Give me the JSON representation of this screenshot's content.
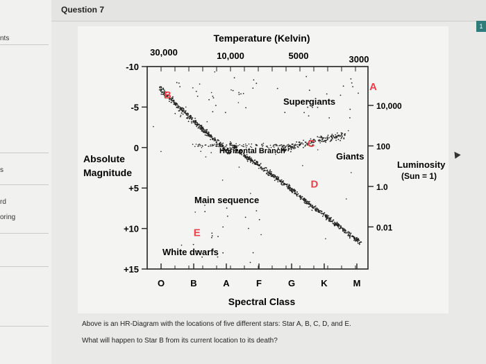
{
  "sidebar": {
    "items": [
      {
        "label": "nts"
      },
      {
        "label": "s"
      },
      {
        "label": "rd"
      },
      {
        "label": "oring"
      }
    ]
  },
  "question": {
    "title": "Question 7",
    "flag_label": "1"
  },
  "chart_data": {
    "type": "scatter",
    "title": "",
    "top_axis_label": "Temperature (Kelvin)",
    "top_ticks": [
      "30,000",
      "10,000",
      "5000",
      "3000"
    ],
    "left_axis_label": [
      "Absolute",
      "Magnitude"
    ],
    "left_ticks": [
      "-10",
      "-5",
      "0",
      "+5",
      "+10",
      "+15"
    ],
    "left_values": [
      -10,
      -5,
      0,
      5,
      10,
      15
    ],
    "right_axis_label": [
      "Luminosity",
      "(Sun = 1)"
    ],
    "right_ticks": [
      "10,000",
      "100",
      "1.0",
      "0.01"
    ],
    "right_values": [
      10000,
      100,
      1,
      0.01
    ],
    "bottom_axis_label": "Spectral Class",
    "bottom_ticks": [
      "O",
      "B",
      "A",
      "F",
      "G",
      "K",
      "M"
    ],
    "region_labels": {
      "supergiants": "Supergiants",
      "giants": "Giants",
      "horizontal_branch": "Horizontal Branch",
      "main_sequence": "Main sequence",
      "white_dwarfs": "White dwarfs"
    },
    "stars": [
      {
        "label": "A",
        "class": 6.5,
        "magnitude": -7.5
      },
      {
        "label": "B",
        "class": 0.2,
        "magnitude": -6.5
      },
      {
        "label": "C",
        "class": 4.6,
        "magnitude": -0.5
      },
      {
        "label": "D",
        "class": 4.7,
        "magnitude": 4.5
      },
      {
        "label": "E",
        "class": 1.1,
        "magnitude": 10.5
      }
    ],
    "star_color": "#e8414b",
    "point_color": "#222222"
  },
  "footer": {
    "line1": "Above is an HR-Diagram with the locations of five different stars: Star A, B, C, D, and E.",
    "line2": "What will happen to Star B from its current location to its death?"
  }
}
